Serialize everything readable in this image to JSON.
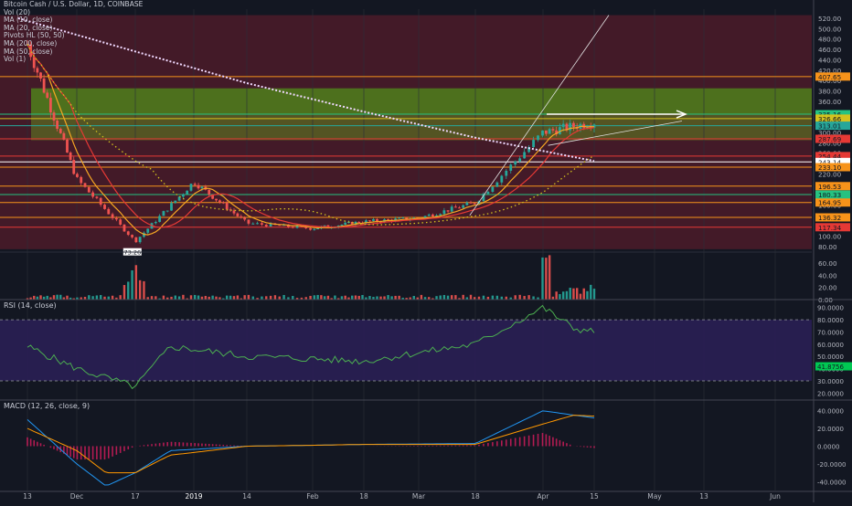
{
  "header": {
    "symbol_line": "Bitcoin Cash / U.S. Dollar, 1D, COINBASE",
    "indicators": [
      "Vol (20)",
      "MA (10, close)",
      "MA (20, close)",
      "Pivots HL (50, 50)",
      "MA (200, close)",
      "MA (50, close)",
      "Vol (1)"
    ]
  },
  "price_axis": {
    "ticks": [
      "520.00",
      "500.00",
      "480.00",
      "460.00",
      "440.00",
      "420.00",
      "400.00",
      "380.00",
      "360.00",
      "340.00",
      "320.00",
      "300.00",
      "280.00",
      "260.00",
      "240.00",
      "220.00",
      "200.00",
      "180.00",
      "160.00",
      "140.00",
      "120.00",
      "100.00",
      "80.00"
    ],
    "badges": [
      {
        "text": "407.65",
        "value": 407.65,
        "color": "#f7931a"
      },
      {
        "text": "335.16",
        "value": 335.16,
        "color": "#26c281"
      },
      {
        "text": "326.66",
        "value": 326.66,
        "color": "#d4c21e"
      },
      {
        "text": "313.01",
        "value": 313.01,
        "color": "#26a69a"
      },
      {
        "text": "287.69",
        "value": 287.69,
        "color": "#e53935"
      },
      {
        "text": "254.44",
        "value": 254.44,
        "color": "#e53935"
      },
      {
        "text": "243.14",
        "value": 243.14,
        "color": "#ffffff"
      },
      {
        "text": "233.10",
        "value": 233.1,
        "color": "#f7931a"
      },
      {
        "text": "196.53",
        "value": 196.53,
        "color": "#f7931a"
      },
      {
        "text": "180.33",
        "value": 180.33,
        "color": "#26c281"
      },
      {
        "text": "164.95",
        "value": 164.95,
        "color": "#f7931a"
      },
      {
        "text": "136.32",
        "value": 136.32,
        "color": "#f7931a"
      },
      {
        "text": "117.34",
        "value": 117.34,
        "color": "#e53935"
      }
    ],
    "pivot_label": "73.26"
  },
  "volume_axis": {
    "ticks": [
      "60.00",
      "40.00",
      "20.00",
      "0.00"
    ]
  },
  "rsi": {
    "title": "RSI (14, close)",
    "ticks": [
      "90.0000",
      "80.0000",
      "70.0000",
      "60.0000",
      "50.0000",
      "40.0000",
      "30.0000",
      "20.0000"
    ],
    "last_value": "41.8756",
    "upper_band": 80,
    "lower_band": 30
  },
  "macd": {
    "title": "MACD (12, 26, close, 9)",
    "ticks": [
      "40.0000",
      "20.0000",
      "0.0000",
      "-20.0000",
      "-40.0000"
    ]
  },
  "time_axis": {
    "labels": [
      "13",
      "Dec",
      "17",
      "2019",
      "14",
      "Feb",
      "18",
      "Mar",
      "18",
      "Apr",
      "15",
      "May",
      "13",
      "Jun"
    ]
  },
  "colors": {
    "background": "#131722",
    "up_candle": "#26a69a",
    "down_candle": "#ef5350",
    "ma10": "#f5a623",
    "ma20": "#e53935",
    "ma50": "#d4c21e",
    "ma200": "#f0d9ff",
    "rsi_line": "#4caf50",
    "macd_line": "#2196f3",
    "signal_line": "#ff9800"
  },
  "chart_data": {
    "type": "line",
    "title": "Bitcoin Cash / U.S. Dollar, 1D, COINBASE",
    "x": [
      "13",
      "Dec",
      "17",
      "2019",
      "14",
      "Feb",
      "18",
      "Mar",
      "18",
      "Apr",
      "15"
    ],
    "series_points": {
      "price": [
        [
          0,
          470
        ],
        [
          1,
          210
        ],
        [
          2,
          90
        ],
        [
          3,
          205
        ],
        [
          4,
          125
        ],
        [
          5,
          115
        ],
        [
          6,
          128
        ],
        [
          7,
          135
        ],
        [
          8,
          165
        ],
        [
          9,
          300
        ],
        [
          10,
          320
        ]
      ],
      "ma200": [
        [
          -0.2,
          520
        ],
        [
          4,
          395
        ],
        [
          6,
          340
        ],
        [
          8,
          290
        ],
        [
          10,
          245
        ]
      ]
    },
    "ylim": [
      70,
      530
    ],
    "rsi": {
      "values": [
        [
          0,
          58
        ],
        [
          1,
          40
        ],
        [
          2,
          25
        ],
        [
          2.6,
          58
        ],
        [
          4,
          50
        ],
        [
          6,
          46
        ],
        [
          8,
          60
        ],
        [
          9,
          90
        ],
        [
          9.6,
          73
        ],
        [
          10,
          70
        ]
      ],
      "ylim": [
        15,
        95
      ]
    },
    "macd": {
      "ylim": [
        -50,
        50
      ]
    }
  }
}
